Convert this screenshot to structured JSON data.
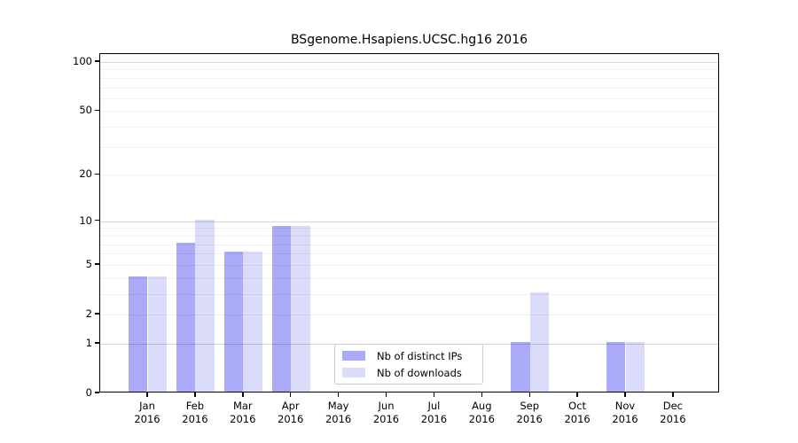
{
  "chart_data": {
    "type": "bar",
    "title": "BSgenome.Hsapiens.UCSC.hg16 2016",
    "year": "2016",
    "months": [
      "Jan",
      "Feb",
      "Mar",
      "Apr",
      "May",
      "Jun",
      "Jul",
      "Aug",
      "Sep",
      "Oct",
      "Nov",
      "Dec"
    ],
    "series": [
      {
        "name": "Nb of distinct IPs",
        "color": "#aaaaf9",
        "values": [
          4,
          7,
          6,
          9,
          0,
          0,
          0,
          0,
          1,
          0,
          1,
          0
        ]
      },
      {
        "name": "Nb of downloads",
        "color": "#dbdbfa",
        "values": [
          4,
          10,
          6,
          9,
          0,
          0,
          0,
          0,
          3,
          0,
          1,
          0
        ]
      }
    ],
    "yscale": "log1p",
    "yticks": [
      0,
      1,
      2,
      5,
      10,
      20,
      50,
      100
    ],
    "ylim": [
      0,
      112
    ],
    "grid": {
      "minor": [
        2,
        3,
        4,
        5,
        6,
        7,
        8,
        9,
        20,
        30,
        40,
        50,
        60,
        70,
        80,
        90
      ],
      "major": [
        1,
        10,
        100
      ],
      "drawn_over_bars": true
    },
    "legend": {
      "position": "bottom-center",
      "entries": [
        "Nb of distinct IPs",
        "Nb of downloads"
      ]
    },
    "axis_color": "#000000",
    "background_color": "#ffffff"
  }
}
